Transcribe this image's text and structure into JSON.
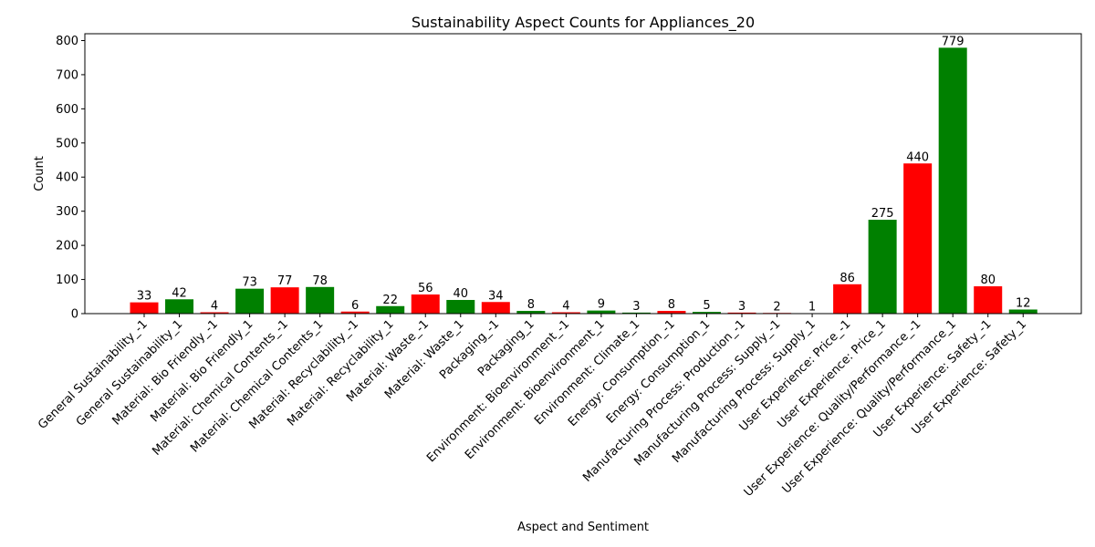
{
  "chart_data": {
    "type": "bar",
    "title": "Sustainability Aspect Counts for Appliances_20",
    "xlabel": "Aspect and Sentiment",
    "ylabel": "Count",
    "ylim": [
      0,
      820
    ],
    "yticks": [
      0,
      100,
      200,
      300,
      400,
      500,
      600,
      700,
      800
    ],
    "grid": false,
    "colors": {
      "negative": "#ff0000",
      "positive": "#008000"
    },
    "categories": [
      "General Sustainability_-1",
      "General Sustainability_1",
      "Material: Bio Friendly_-1",
      "Material: Bio Friendly_1",
      "Material: Chemical Contents_-1",
      "Material: Chemical Contents_1",
      "Material: Recyclability_-1",
      "Material: Recyclability_1",
      "Material: Waste_-1",
      "Material: Waste_1",
      "Packaging_-1",
      "Packaging_1",
      "Environment: Bioenvironment_-1",
      "Environment: Bioenvironment_1",
      "Environment: Climate_1",
      "Energy: Consumption_-1",
      "Energy: Consumption_1",
      "Manufacturing Process: Production_-1",
      "Manufacturing Process: Supply_-1",
      "Manufacturing Process: Supply_1",
      "User Experience: Price_-1",
      "User Experience: Price_1",
      "User Experience: Quality/Performance_-1",
      "User Experience: Quality/Performance_1",
      "User Experience: Safety_-1",
      "User Experience: Safety_1"
    ],
    "values": [
      33,
      42,
      4,
      73,
      77,
      78,
      6,
      22,
      56,
      40,
      34,
      8,
      4,
      9,
      3,
      8,
      5,
      3,
      2,
      1,
      86,
      275,
      440,
      779,
      80,
      12
    ],
    "sentiment": [
      "negative",
      "positive",
      "negative",
      "positive",
      "negative",
      "positive",
      "negative",
      "positive",
      "negative",
      "positive",
      "negative",
      "positive",
      "negative",
      "positive",
      "positive",
      "negative",
      "positive",
      "negative",
      "negative",
      "positive",
      "negative",
      "positive",
      "negative",
      "positive",
      "negative",
      "positive"
    ]
  }
}
